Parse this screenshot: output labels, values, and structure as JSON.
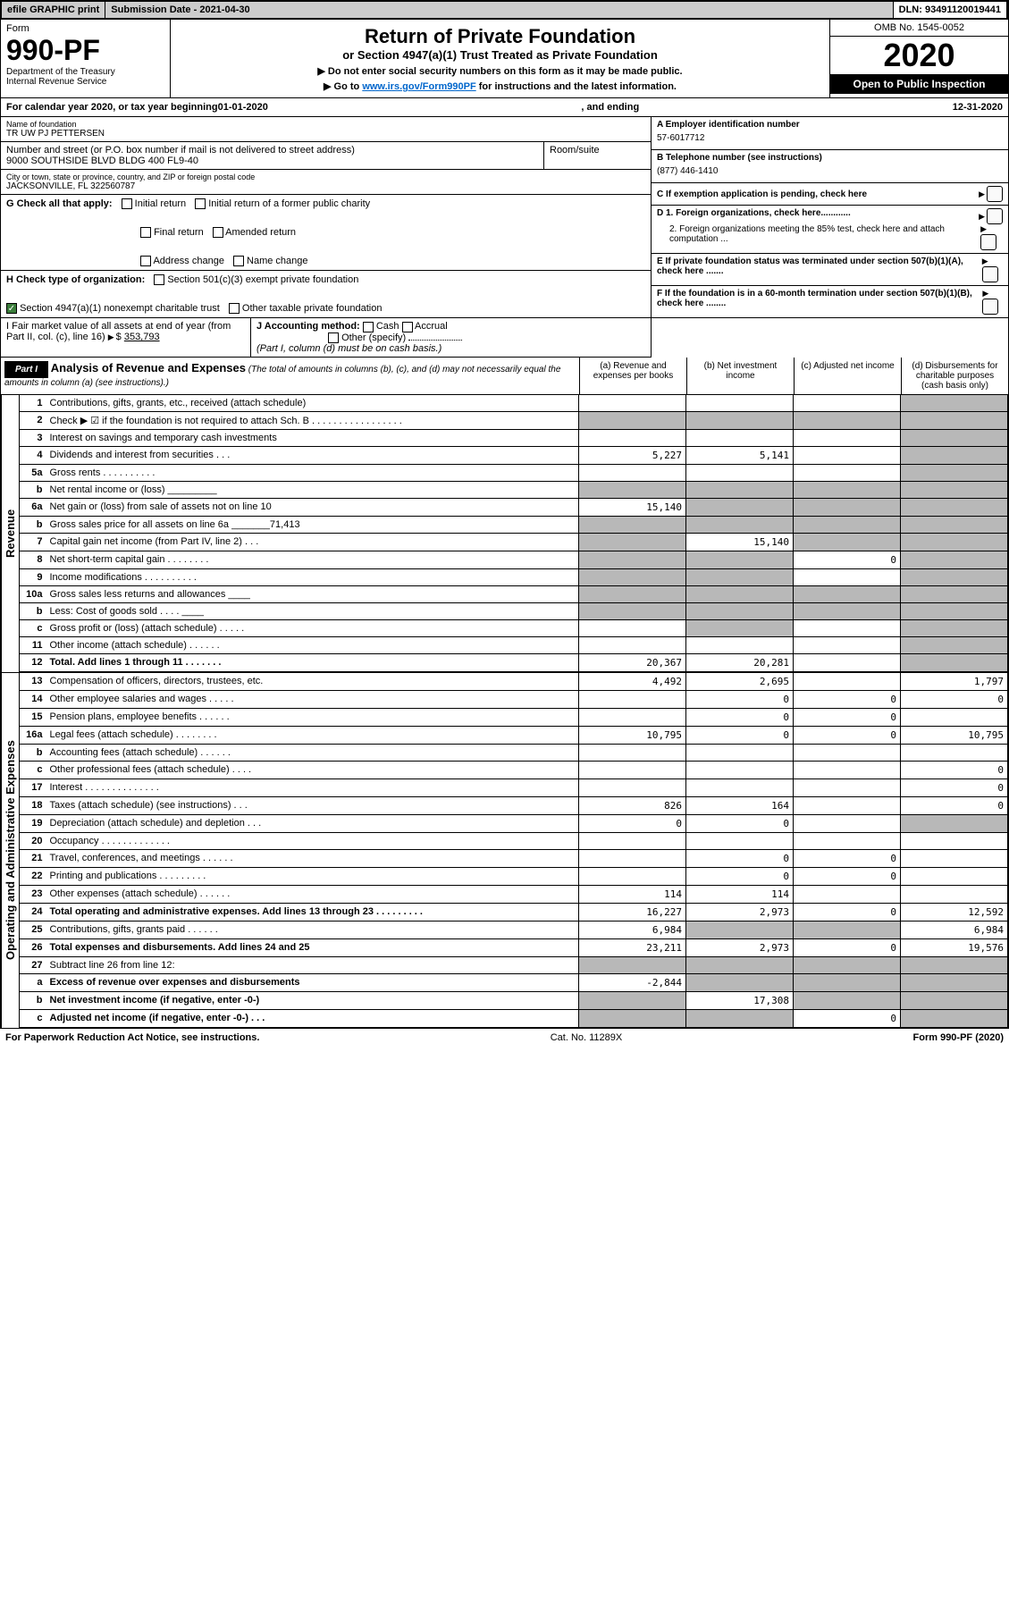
{
  "topbar": {
    "efile": "efile GRAPHIC print",
    "subdate_label": "Submission Date - ",
    "subdate": "2021-04-30",
    "dln_label": "DLN: ",
    "dln": "93491120019441"
  },
  "header": {
    "form_label": "Form",
    "form_no": "990-PF",
    "dept1": "Department of the Treasury",
    "dept2": "Internal Revenue Service",
    "title": "Return of Private Foundation",
    "subtitle": "or Section 4947(a)(1) Trust Treated as Private Foundation",
    "note1": "▶ Do not enter social security numbers on this form as it may be made public.",
    "note2_pre": "▶ Go to ",
    "note2_link": "www.irs.gov/Form990PF",
    "note2_post": " for instructions and the latest information.",
    "omb": "OMB No. 1545-0052",
    "year": "2020",
    "open": "Open to Public Inspection"
  },
  "calrow": {
    "pre": "For calendar year 2020, or tax year beginning ",
    "begin": "01-01-2020",
    "mid": ", and ending ",
    "end": "12-31-2020"
  },
  "info": {
    "name_lbl": "Name of foundation",
    "name": "TR UW PJ PETTERSEN",
    "addr_lbl": "Number and street (or P.O. box number if mail is not delivered to street address)",
    "addr": "9000 SOUTHSIDE BLVD BLDG 400 FL9-40",
    "room_lbl": "Room/suite",
    "city_lbl": "City or town, state or province, country, and ZIP or foreign postal code",
    "city": "JACKSONVILLE, FL 322560787",
    "a_lbl": "A Employer identification number",
    "a_val": "57-6017712",
    "b_lbl": "B Telephone number (see instructions)",
    "b_val": "(877) 446-1410",
    "c_lbl": "C If exemption application is pending, check here",
    "d1_lbl": "D 1. Foreign organizations, check here............",
    "d2_lbl": "2. Foreign organizations meeting the 85% test, check here and attach computation ...",
    "e_lbl": "E If private foundation status was terminated under section 507(b)(1)(A), check here .......",
    "f_lbl": "F If the foundation is in a 60-month termination under section 507(b)(1)(B), check here ........",
    "g_lbl": "G Check all that apply:",
    "g_opts": [
      "Initial return",
      "Initial return of a former public charity",
      "Final return",
      "Amended return",
      "Address change",
      "Name change"
    ],
    "h_lbl": "H Check type of organization:",
    "h_opt1": "Section 501(c)(3) exempt private foundation",
    "h_opt2": "Section 4947(a)(1) nonexempt charitable trust",
    "h_opt3": "Other taxable private foundation",
    "i_lbl": "I Fair market value of all assets at end of year (from Part II, col. (c), line 16)",
    "i_val": "353,793",
    "j_lbl": "J Accounting method:",
    "j_cash": "Cash",
    "j_accrual": "Accrual",
    "j_other": "Other (specify)",
    "j_note": "(Part I, column (d) must be on cash basis.)"
  },
  "part1": {
    "label": "Part I",
    "title": "Analysis of Revenue and Expenses",
    "note": "(The total of amounts in columns (b), (c), and (d) may not necessarily equal the amounts in column (a) (see instructions).)",
    "col_a": "(a) Revenue and expenses per books",
    "col_b": "(b) Net investment income",
    "col_c": "(c) Adjusted net income",
    "col_d": "(d) Disbursements for charitable purposes (cash basis only)"
  },
  "side_rev": "Revenue",
  "side_exp": "Operating and Administrative Expenses",
  "rows": [
    {
      "n": "1",
      "t": "Contributions, gifts, grants, etc., received (attach schedule)",
      "a": "",
      "b": "",
      "c": "",
      "d": "",
      "shade_d": true
    },
    {
      "n": "2",
      "t": "Check ▶ ☑ if the foundation is not required to attach Sch. B  . . . . . . . . . . . . . . . . .",
      "a": "",
      "b": "",
      "c": "",
      "d": "",
      "shade_a": true,
      "shade_b": true,
      "shade_c": true,
      "shade_d": true
    },
    {
      "n": "3",
      "t": "Interest on savings and temporary cash investments",
      "a": "",
      "b": "",
      "c": "",
      "d": "",
      "shade_d": true
    },
    {
      "n": "4",
      "t": "Dividends and interest from securities  . . .",
      "a": "5,227",
      "b": "5,141",
      "c": "",
      "d": "",
      "shade_d": true
    },
    {
      "n": "5a",
      "t": "Gross rents  . . . . . . . . . .",
      "a": "",
      "b": "",
      "c": "",
      "d": "",
      "shade_d": true
    },
    {
      "n": "b",
      "t": "Net rental income or (loss)  _________",
      "a": "",
      "b": "",
      "c": "",
      "d": "",
      "shade_a": true,
      "shade_b": true,
      "shade_c": true,
      "shade_d": true
    },
    {
      "n": "6a",
      "t": "Net gain or (loss) from sale of assets not on line 10",
      "a": "15,140",
      "b": "",
      "c": "",
      "d": "",
      "shade_b": true,
      "shade_c": true,
      "shade_d": true
    },
    {
      "n": "b",
      "t": "Gross sales price for all assets on line 6a _______71,413",
      "a": "",
      "b": "",
      "c": "",
      "d": "",
      "shade_a": true,
      "shade_b": true,
      "shade_c": true,
      "shade_d": true
    },
    {
      "n": "7",
      "t": "Capital gain net income (from Part IV, line 2)  . . .",
      "a": "",
      "b": "15,140",
      "c": "",
      "d": "",
      "shade_a": true,
      "shade_c": true,
      "shade_d": true
    },
    {
      "n": "8",
      "t": "Net short-term capital gain  . . . . . . . .",
      "a": "",
      "b": "",
      "c": "0",
      "d": "",
      "shade_a": true,
      "shade_b": true,
      "shade_d": true
    },
    {
      "n": "9",
      "t": "Income modifications  . . . . . . . . . .",
      "a": "",
      "b": "",
      "c": "",
      "d": "",
      "shade_a": true,
      "shade_b": true,
      "shade_d": true
    },
    {
      "n": "10a",
      "t": "Gross sales less returns and allowances  ____",
      "a": "",
      "b": "",
      "c": "",
      "d": "",
      "shade_a": true,
      "shade_b": true,
      "shade_c": true,
      "shade_d": true
    },
    {
      "n": "b",
      "t": "Less: Cost of goods sold  . . . .  ____",
      "a": "",
      "b": "",
      "c": "",
      "d": "",
      "shade_a": true,
      "shade_b": true,
      "shade_c": true,
      "shade_d": true
    },
    {
      "n": "c",
      "t": "Gross profit or (loss) (attach schedule)  . . . . .",
      "a": "",
      "b": "",
      "c": "",
      "d": "",
      "shade_b": true,
      "shade_d": true
    },
    {
      "n": "11",
      "t": "Other income (attach schedule)  . . . . . .",
      "a": "",
      "b": "",
      "c": "",
      "d": "",
      "shade_d": true
    },
    {
      "n": "12",
      "t": "Total. Add lines 1 through 11  . . . . . . .",
      "a": "20,367",
      "b": "20,281",
      "c": "",
      "d": "",
      "bold": true,
      "shade_d": true
    }
  ],
  "exp_rows": [
    {
      "n": "13",
      "t": "Compensation of officers, directors, trustees, etc.",
      "a": "4,492",
      "b": "2,695",
      "c": "",
      "d": "1,797"
    },
    {
      "n": "14",
      "t": "Other employee salaries and wages  . . . . .",
      "a": "",
      "b": "0",
      "c": "0",
      "d": "0"
    },
    {
      "n": "15",
      "t": "Pension plans, employee benefits  . . . . . .",
      "a": "",
      "b": "0",
      "c": "0",
      "d": ""
    },
    {
      "n": "16a",
      "t": "Legal fees (attach schedule)  . . . . . . . .",
      "a": "10,795",
      "b": "0",
      "c": "0",
      "d": "10,795"
    },
    {
      "n": "b",
      "t": "Accounting fees (attach schedule)  . . . . . .",
      "a": "",
      "b": "",
      "c": "",
      "d": ""
    },
    {
      "n": "c",
      "t": "Other professional fees (attach schedule)  . . . .",
      "a": "",
      "b": "",
      "c": "",
      "d": "0"
    },
    {
      "n": "17",
      "t": "Interest  . . . . . . . . . . . . . .",
      "a": "",
      "b": "",
      "c": "",
      "d": "0"
    },
    {
      "n": "18",
      "t": "Taxes (attach schedule) (see instructions)  . . .",
      "a": "826",
      "b": "164",
      "c": "",
      "d": "0"
    },
    {
      "n": "19",
      "t": "Depreciation (attach schedule) and depletion  . . .",
      "a": "0",
      "b": "0",
      "c": "",
      "d": "",
      "shade_d": true
    },
    {
      "n": "20",
      "t": "Occupancy  . . . . . . . . . . . . .",
      "a": "",
      "b": "",
      "c": "",
      "d": ""
    },
    {
      "n": "21",
      "t": "Travel, conferences, and meetings  . . . . . .",
      "a": "",
      "b": "0",
      "c": "0",
      "d": ""
    },
    {
      "n": "22",
      "t": "Printing and publications  . . . . . . . . .",
      "a": "",
      "b": "0",
      "c": "0",
      "d": ""
    },
    {
      "n": "23",
      "t": "Other expenses (attach schedule)  . . . . . .",
      "a": "114",
      "b": "114",
      "c": "",
      "d": ""
    },
    {
      "n": "24",
      "t": "Total operating and administrative expenses. Add lines 13 through 23  . . . . . . . . .",
      "a": "16,227",
      "b": "2,973",
      "c": "0",
      "d": "12,592",
      "bold": true
    },
    {
      "n": "25",
      "t": "Contributions, gifts, grants paid  . . . . . .",
      "a": "6,984",
      "b": "",
      "c": "",
      "d": "6,984",
      "shade_b": true,
      "shade_c": true
    },
    {
      "n": "26",
      "t": "Total expenses and disbursements. Add lines 24 and 25",
      "a": "23,211",
      "b": "2,973",
      "c": "0",
      "d": "19,576",
      "bold": true
    },
    {
      "n": "27",
      "t": "Subtract line 26 from line 12:",
      "a": "",
      "b": "",
      "c": "",
      "d": "",
      "shade_a": true,
      "shade_b": true,
      "shade_c": true,
      "shade_d": true
    },
    {
      "n": "a",
      "t": "Excess of revenue over expenses and disbursements",
      "a": "-2,844",
      "b": "",
      "c": "",
      "d": "",
      "bold": true,
      "shade_b": true,
      "shade_c": true,
      "shade_d": true
    },
    {
      "n": "b",
      "t": "Net investment income (if negative, enter -0-)",
      "a": "",
      "b": "17,308",
      "c": "",
      "d": "",
      "bold": true,
      "shade_a": true,
      "shade_c": true,
      "shade_d": true
    },
    {
      "n": "c",
      "t": "Adjusted net income (if negative, enter -0-)  . . .",
      "a": "",
      "b": "",
      "c": "0",
      "d": "",
      "bold": true,
      "shade_a": true,
      "shade_b": true,
      "shade_d": true
    }
  ],
  "footer": {
    "left": "For Paperwork Reduction Act Notice, see instructions.",
    "mid": "Cat. No. 11289X",
    "right": "Form 990-PF (2020)"
  }
}
